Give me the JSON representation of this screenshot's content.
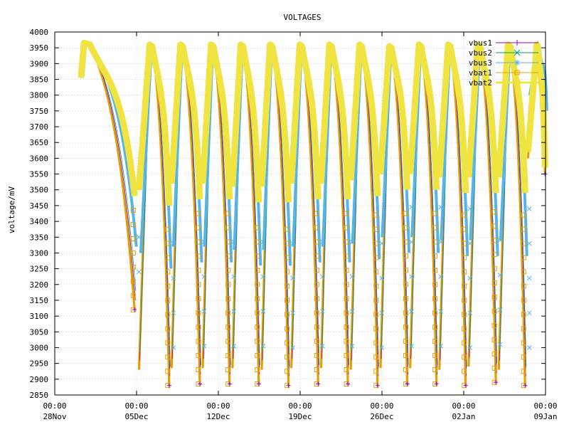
{
  "chart_data": {
    "type": "line",
    "title": "VOLTAGES",
    "ylabel": "voltage/mV",
    "xlabel": "",
    "ylim": [
      2850,
      4000
    ],
    "yticks": [
      2850,
      2900,
      2950,
      3000,
      3050,
      3100,
      3150,
      3200,
      3250,
      3300,
      3350,
      3400,
      3450,
      3500,
      3550,
      3600,
      3650,
      3700,
      3750,
      3800,
      3850,
      3900,
      3950,
      4000
    ],
    "xlim": [
      "2023-11-28 00:00",
      "2024-01-09 00:00"
    ],
    "xticks": [
      {
        "date": "2023-11-28 00:00",
        "time": "00:00",
        "day": "28Nov"
      },
      {
        "date": "2023-12-05 00:00",
        "time": "00:00",
        "day": "05Dec"
      },
      {
        "date": "2023-12-12 00:00",
        "time": "00:00",
        "day": "12Dec"
      },
      {
        "date": "2023-12-19 00:00",
        "time": "00:00",
        "day": "19Dec"
      },
      {
        "date": "2023-12-26 00:00",
        "time": "00:00",
        "day": "26Dec"
      },
      {
        "date": "2024-01-02 00:00",
        "time": "00:00",
        "day": "02Jan"
      },
      {
        "date": "2024-01-09 00:00",
        "time": "00:00",
        "day": "09Jan"
      }
    ],
    "grid": true,
    "legend_position": "top-right",
    "series": [
      {
        "name": "vbus1",
        "color": "#9400d3",
        "marker": "plus"
      },
      {
        "name": "vbus2",
        "color": "#009e73",
        "marker": "x"
      },
      {
        "name": "vbus3",
        "color": "#56b4e9",
        "marker": "asterisk"
      },
      {
        "name": "vbat1",
        "color": "#e69f00",
        "marker": "square"
      },
      {
        "name": "vbat2",
        "color": "#f0e442",
        "marker": "filled-square"
      }
    ],
    "cycles": [
      {
        "start": "2023-11-30 06:00",
        "max_date": "2023-11-30 12:00",
        "min_date": "2023-12-04 20:00",
        "low": 3120,
        "yellow_low": 3480,
        "max": 3965
      },
      {
        "start": "2023-12-05 05:00",
        "max_date": "2023-12-06 03:00",
        "min_date": "2023-12-07 19:00",
        "low": 2880,
        "yellow_low": 3450,
        "max": 3960
      },
      {
        "start": "2023-12-08 00:00",
        "max_date": "2023-12-08 18:00",
        "min_date": "2023-12-10 10:00",
        "low": 2885,
        "yellow_low": 3470,
        "max": 3960
      },
      {
        "start": "2023-12-10 16:00",
        "max_date": "2023-12-11 09:00",
        "min_date": "2023-12-12 23:00",
        "low": 2885,
        "yellow_low": 3470,
        "max": 3960
      },
      {
        "start": "2023-12-13 05:00",
        "max_date": "2023-12-13 22:00",
        "min_date": "2023-12-15 11:00",
        "low": 2885,
        "yellow_low": 3460,
        "max": 3960
      },
      {
        "start": "2023-12-15 17:00",
        "max_date": "2023-12-16 10:00",
        "min_date": "2023-12-18 00:00",
        "low": 2880,
        "yellow_low": 3460,
        "max": 3960
      },
      {
        "start": "2023-12-18 06:00",
        "max_date": "2023-12-18 23:00",
        "min_date": "2023-12-20 13:00",
        "low": 2885,
        "yellow_low": 3470,
        "max": 3960
      },
      {
        "start": "2023-12-20 19:00",
        "max_date": "2023-12-21 12:00",
        "min_date": "2023-12-23 02:00",
        "low": 2885,
        "yellow_low": 3470,
        "max": 3960
      },
      {
        "start": "2023-12-23 08:00",
        "max_date": "2023-12-24 02:00",
        "min_date": "2023-12-25 15:00",
        "low": 2880,
        "yellow_low": 3480,
        "max": 3960
      },
      {
        "start": "2023-12-25 21:00",
        "max_date": "2023-12-26 15:00",
        "min_date": "2023-12-28 04:00",
        "low": 2885,
        "yellow_low": 3500,
        "max": 3955
      },
      {
        "start": "2023-12-28 10:00",
        "max_date": "2023-12-29 04:00",
        "min_date": "2023-12-30 16:00",
        "low": 2885,
        "yellow_low": 3500,
        "max": 3960
      },
      {
        "start": "2023-12-30 22:00",
        "max_date": "2023-12-31 16:00",
        "min_date": "2024-01-02 04:00",
        "low": 2880,
        "yellow_low": 3490,
        "max": 3960
      },
      {
        "start": "2024-01-02 10:00",
        "max_date": "2024-01-03 05:00",
        "min_date": "2024-01-04 18:00",
        "low": 2890,
        "yellow_low": 3490,
        "max": 3960
      },
      {
        "start": "2024-01-05 00:00",
        "max_date": "2024-01-05 19:00",
        "min_date": "2024-01-07 06:00",
        "low": 2880,
        "yellow_low": 3490,
        "max": 3960
      },
      {
        "start": "2024-01-07 12:00",
        "max_date": "2024-01-08 06:00",
        "min_date": "2024-01-08 23:00",
        "low": 3550,
        "yellow_low": 3570,
        "max": 3960
      }
    ]
  }
}
